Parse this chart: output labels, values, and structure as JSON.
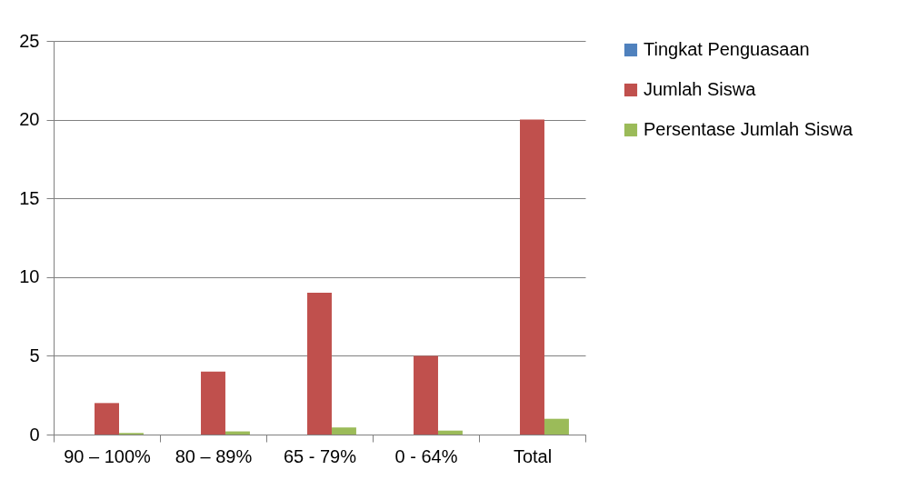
{
  "chart_data": {
    "type": "bar",
    "categories": [
      "90 – 100%",
      "80 – 89%",
      "65 - 79%",
      "0 - 64%",
      "Total"
    ],
    "series": [
      {
        "name": "Tingkat Penguasaan",
        "color": "#4f81bd",
        "values": [
          0,
          0,
          0,
          0,
          0
        ]
      },
      {
        "name": "Jumlah Siswa",
        "color": "#c0504d",
        "values": [
          2,
          4,
          9,
          5,
          20
        ]
      },
      {
        "name": "Persentase Jumlah Siswa",
        "color": "#9bbb59",
        "values": [
          0.1,
          0.2,
          0.45,
          0.25,
          1
        ]
      }
    ],
    "ylim": [
      0,
      25
    ],
    "yticks": [
      0,
      5,
      10,
      15,
      20,
      25
    ],
    "grid": "y",
    "legend": "right"
  }
}
